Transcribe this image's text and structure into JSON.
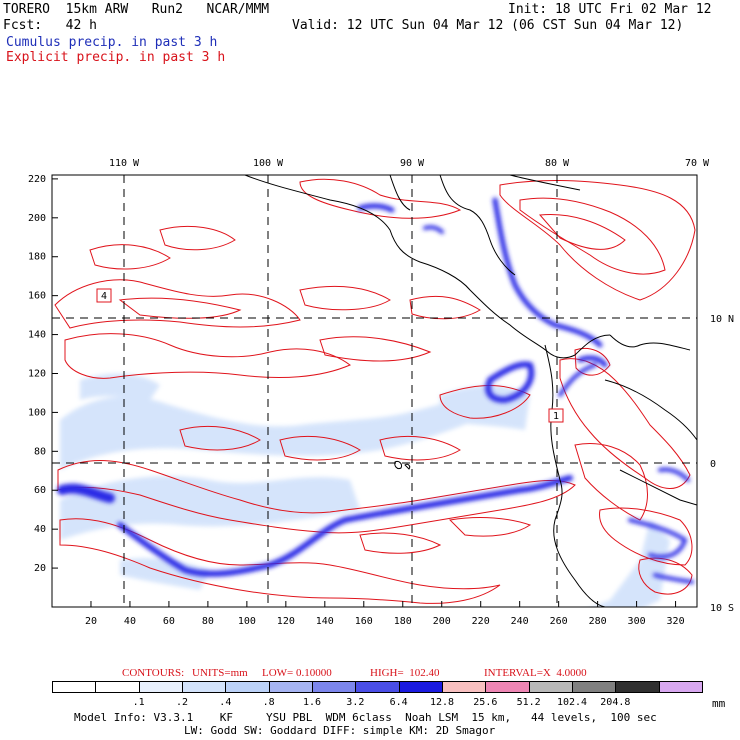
{
  "header": {
    "model_line": "TORERO  15km ARW   Run2   NCAR/MMM",
    "init_line": "Init: 18 UTC Fri 02 Mar 12",
    "fcst_line": "Fcst:   42 h",
    "valid_line": "Valid: 12 UTC Sun 04 Mar 12 (06 CST Sun 04 Mar 12)",
    "cumulus_line": "Cumulus precip. in past 3 h",
    "explicit_line": "Explicit precip. in past 3 h"
  },
  "map": {
    "lon_labels": [
      "110 W",
      "100 W",
      "90 W",
      "80 W",
      "70 W"
    ],
    "lat_labels": [
      "10 N",
      "0",
      "10 S"
    ],
    "x_ticks": [
      "20",
      "40",
      "60",
      "80",
      "100",
      "120",
      "140",
      "160",
      "180",
      "200",
      "220",
      "240",
      "260",
      "280",
      "300",
      "320"
    ],
    "y_ticks": [
      "20",
      "40",
      "60",
      "80",
      "100",
      "120",
      "140",
      "160",
      "180",
      "200",
      "220"
    ],
    "station_labels": [
      "4",
      "1"
    ],
    "colors": {
      "contour": "#e0141c",
      "coast": "#000000",
      "precip_dark": "#1a1ae6",
      "precip_light": "#c8dcfa"
    }
  },
  "contours_caption": {
    "title": "CONTOURS:",
    "units": "UNITS=mm",
    "low": "LOW= 0.10000",
    "high": "HIGH=  102.40",
    "interval": "INTERVAL=X  4.0000"
  },
  "colorbar": {
    "labels": [
      ".1",
      ".2",
      ".4",
      ".8",
      "1.6",
      "3.2",
      "6.4",
      "12.8",
      "25.6",
      "51.2",
      "102.4",
      "204.8"
    ],
    "unit": "mm",
    "colors": [
      "#ffffff",
      "#ffffff",
      "#e8f0fd",
      "#d3e3fb",
      "#bcd2f8",
      "#a6b4f2",
      "#7c86ec",
      "#4a4ee6",
      "#1a1ae0",
      "#f8c0c0",
      "#ee86b4",
      "#b8b8b8",
      "#808080",
      "#303030",
      "#d8a8f0"
    ]
  },
  "footer": {
    "line1": "Model Info: V3.3.1    KF     YSU PBL  WDM 6class  Noah LSM  15 km,   44 levels,  100 sec",
    "line2": "LW: Godd SW: Goddard DIFF: simple KM: 2D Smagor"
  }
}
